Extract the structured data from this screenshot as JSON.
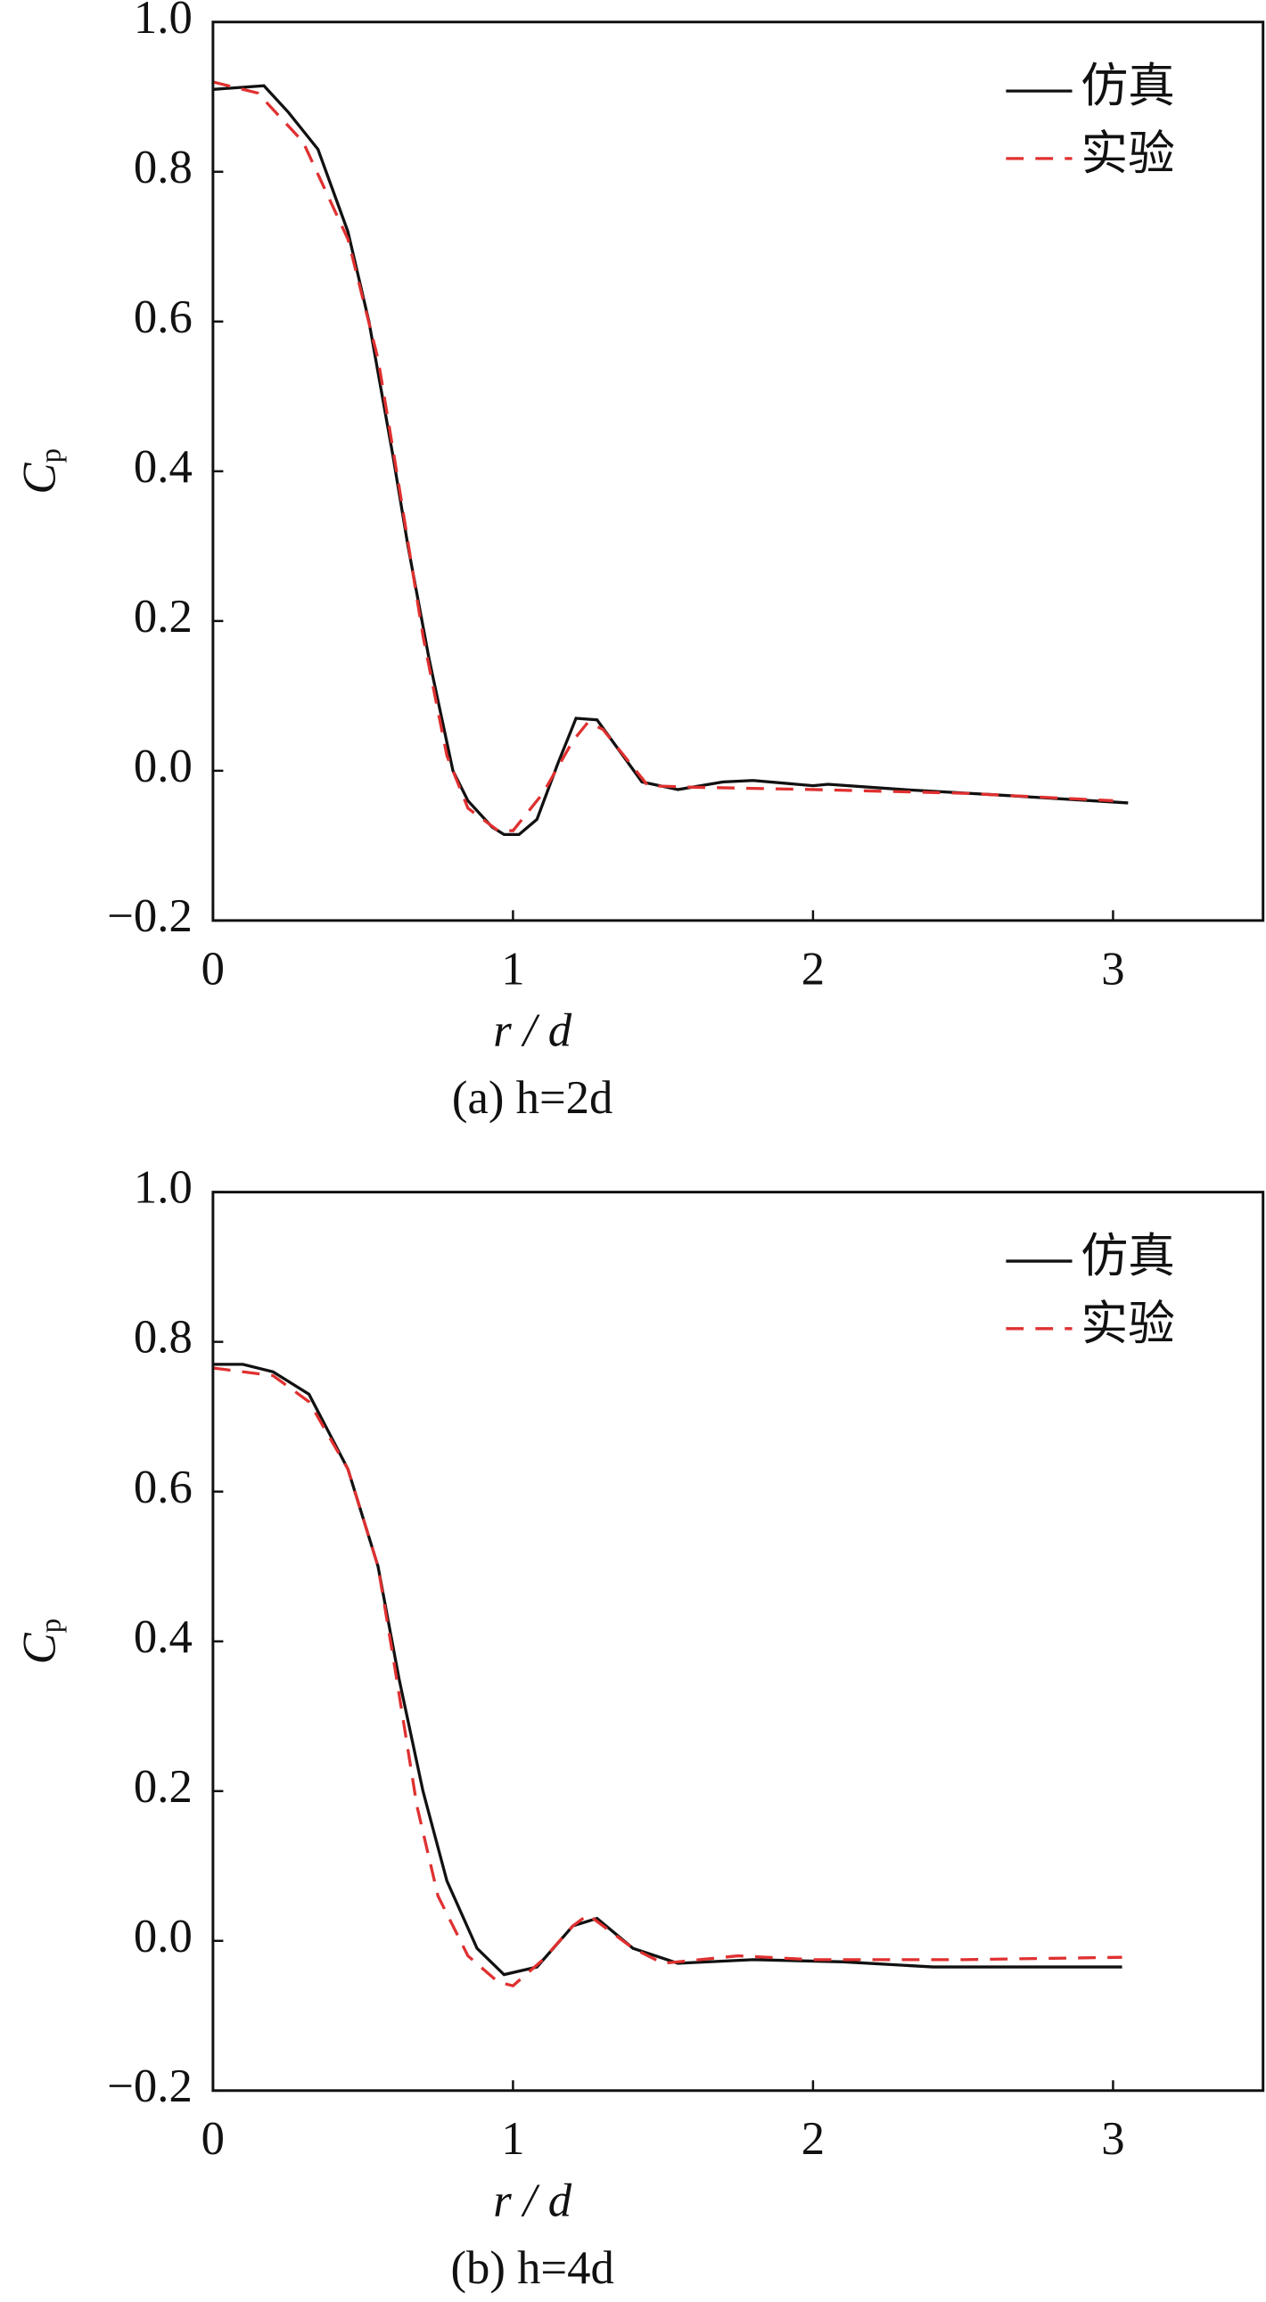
{
  "chart_data": [
    {
      "type": "line",
      "title": "(a) h=2d",
      "xlabel": "r / d",
      "ylabel": [
        "C",
        "p"
      ],
      "xlim": [
        0,
        3.5
      ],
      "ylim": [
        -0.2,
        1.0
      ],
      "xticks": [
        0,
        1,
        2,
        3
      ],
      "yticks": [
        {
          "value": -0.2,
          "label": "−0.2"
        },
        {
          "value": 0,
          "label": "0.0"
        },
        0.2,
        0.4,
        0.6,
        0.8,
        {
          "value": 1.0,
          "label": "1.0"
        }
      ],
      "legend": "upper right",
      "series": [
        {
          "name": "仿真",
          "color": "#111111",
          "dash": false,
          "x": [
            0,
            0.17,
            0.25,
            0.35,
            0.45,
            0.52,
            0.6,
            0.65,
            0.72,
            0.8,
            0.85,
            0.93,
            0.97,
            1.02,
            1.08,
            1.15,
            1.21,
            1.28,
            1.43,
            1.55,
            1.7,
            1.8,
            2.0,
            2.05,
            2.3,
            2.6,
            3.05
          ],
          "values": [
            0.91,
            0.915,
            0.88,
            0.83,
            0.72,
            0.6,
            0.42,
            0.3,
            0.15,
            0.0,
            -0.04,
            -0.075,
            -0.085,
            -0.085,
            -0.065,
            0.01,
            0.07,
            0.068,
            -0.015,
            -0.025,
            -0.015,
            -0.013,
            -0.02,
            -0.018,
            -0.025,
            -0.032,
            -0.043
          ]
        },
        {
          "name": "实验",
          "color": "#e03030",
          "dash": true,
          "x": [
            0,
            0.15,
            0.3,
            0.45,
            0.55,
            0.62,
            0.7,
            0.78,
            0.85,
            0.95,
            1.0,
            1.1,
            1.2,
            1.25,
            1.3,
            1.45,
            1.6,
            2.0,
            2.5,
            3.0
          ],
          "values": [
            0.92,
            0.905,
            0.84,
            0.71,
            0.55,
            0.38,
            0.18,
            0.02,
            -0.05,
            -0.08,
            -0.08,
            -0.03,
            0.04,
            0.065,
            0.055,
            -0.02,
            -0.022,
            -0.025,
            -0.03,
            -0.04
          ]
        }
      ]
    },
    {
      "type": "line",
      "title": "(b) h=4d",
      "xlabel": "r / d",
      "ylabel": [
        "C",
        "p"
      ],
      "xlim": [
        0,
        3.5
      ],
      "ylim": [
        -0.2,
        1.0
      ],
      "xticks": [
        0,
        1,
        2,
        3
      ],
      "yticks": [
        {
          "value": -0.2,
          "label": "−0.2"
        },
        {
          "value": 0,
          "label": "0.0"
        },
        0.2,
        0.4,
        0.6,
        0.8,
        {
          "value": 1.0,
          "label": "1.0"
        }
      ],
      "legend": "upper right",
      "series": [
        {
          "name": "仿真",
          "color": "#111111",
          "dash": false,
          "x": [
            0,
            0.1,
            0.2,
            0.32,
            0.45,
            0.55,
            0.62,
            0.7,
            0.78,
            0.88,
            0.97,
            1.08,
            1.2,
            1.28,
            1.4,
            1.55,
            1.8,
            2.1,
            2.4,
            3.03
          ],
          "values": [
            0.77,
            0.77,
            0.76,
            0.73,
            0.63,
            0.5,
            0.35,
            0.2,
            0.08,
            -0.01,
            -0.045,
            -0.035,
            0.02,
            0.03,
            -0.01,
            -0.03,
            -0.025,
            -0.028,
            -0.035,
            -0.035
          ]
        },
        {
          "name": "实验",
          "color": "#e03030",
          "dash": true,
          "x": [
            0,
            0.2,
            0.32,
            0.45,
            0.55,
            0.6,
            0.68,
            0.75,
            0.85,
            0.95,
            1.0,
            1.1,
            1.2,
            1.25,
            1.4,
            1.5,
            1.75,
            2.0,
            2.5,
            3.03
          ],
          "values": [
            0.765,
            0.755,
            0.72,
            0.63,
            0.5,
            0.38,
            0.18,
            0.06,
            -0.02,
            -0.055,
            -0.06,
            -0.025,
            0.02,
            0.035,
            -0.01,
            -0.03,
            -0.02,
            -0.025,
            -0.025,
            -0.022
          ]
        }
      ]
    }
  ]
}
